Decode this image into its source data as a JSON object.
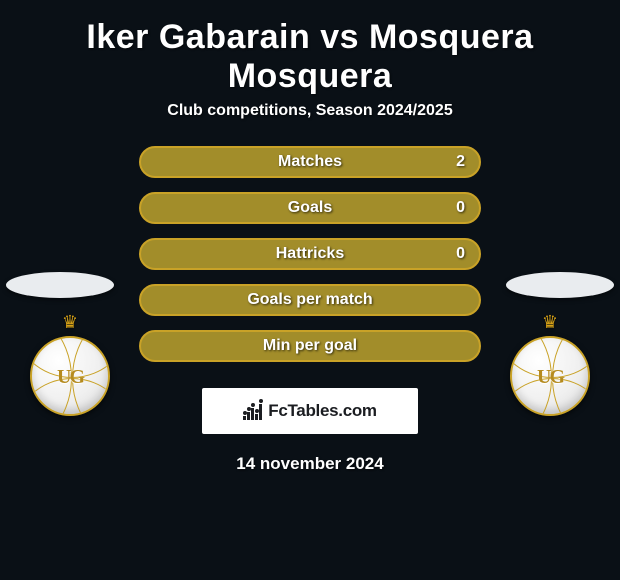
{
  "title": "Iker Gabarain vs Mosquera Mosquera",
  "subtitle": "Club competitions, Season 2024/2025",
  "colors": {
    "background": "#0a1016",
    "pill_fill": "#a28d2a",
    "pill_border": "#c9a227",
    "text": "#ffffff",
    "card_bg": "#ffffff",
    "card_text": "#1b1d21",
    "crest_gold": "#c9a227"
  },
  "typography": {
    "title_fontsize": 34,
    "subtitle_fontsize": 16,
    "stat_fontsize": 16,
    "footer_fontsize": 17
  },
  "stats": [
    {
      "label": "Matches",
      "right_value": "2"
    },
    {
      "label": "Goals",
      "right_value": "0"
    },
    {
      "label": "Hattricks",
      "right_value": "0"
    },
    {
      "label": "Goals per match",
      "right_value": ""
    },
    {
      "label": "Min per goal",
      "right_value": ""
    }
  ],
  "sides": {
    "left": {
      "crest_letters": "UG",
      "crest_crown": "♛"
    },
    "right": {
      "crest_letters": "UG",
      "crest_crown": "♛"
    }
  },
  "branding": {
    "site_name": "FcTables.com",
    "logo_bar_heights": [
      4,
      8,
      12,
      6,
      16
    ]
  },
  "date": "14 november 2024"
}
